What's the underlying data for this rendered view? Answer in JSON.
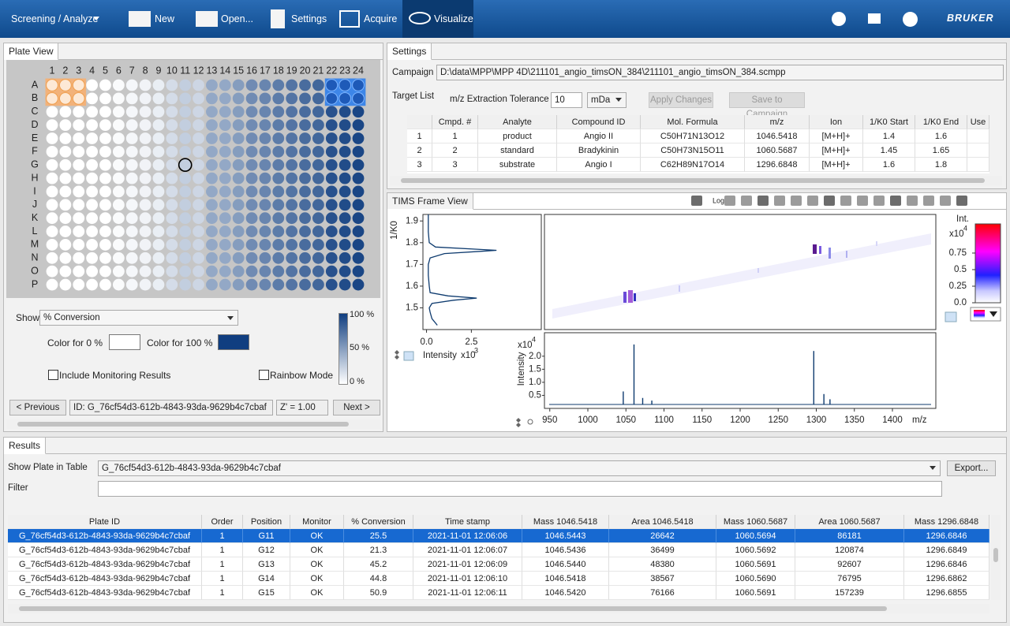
{
  "toolbar": {
    "menu": "Screening / Analyze",
    "buttons": [
      "New",
      "Open...",
      "Settings",
      "Acquire",
      "Visualize"
    ],
    "logo": "BRUKER"
  },
  "plate_view": {
    "title": "Plate View",
    "columns": [
      "1",
      "2",
      "3",
      "4",
      "5",
      "6",
      "7",
      "8",
      "9",
      "10",
      "11",
      "12",
      "13",
      "14",
      "15",
      "16",
      "17",
      "18",
      "19",
      "20",
      "21",
      "22",
      "23",
      "24"
    ],
    "rows": [
      "A",
      "B",
      "C",
      "D",
      "E",
      "F",
      "G",
      "H",
      "I",
      "J",
      "K",
      "L",
      "M",
      "N",
      "O",
      "P"
    ],
    "column_conversion": [
      0,
      0,
      0,
      0,
      0,
      2,
      4,
      6,
      9,
      18,
      25.5,
      21,
      45,
      45,
      51,
      60,
      63,
      68,
      72,
      76,
      79,
      90,
      93,
      96
    ],
    "show_label": "Show",
    "show_value": "% Conversion",
    "color0_label": "Color for 0 %",
    "color100_label": "Color for 100 %",
    "include_monitoring": "Include Monitoring Results",
    "rainbow_mode": "Rainbow Mode",
    "legend": [
      "100 %",
      "50 %",
      "0 %"
    ],
    "previous": "< Previous",
    "id": "ID: G_76cf54d3-612b-4843-93da-9629b4c7cbaf",
    "z_prime": "Z' = 1.00",
    "next": "Next >"
  },
  "settings": {
    "title": "Settings",
    "campaign_label": "Campaign",
    "campaign_path": "D:\\data\\MPP\\MPP 4D\\211101_angio_timsON_384\\211101_angio_timsON_384.scmpp",
    "target_list": "Target List",
    "tolerance_label": "m/z Extraction Tolerance",
    "tolerance_value": "10",
    "tolerance_unit": "mDa",
    "apply": "Apply Changes",
    "save": "Save to Campaign",
    "table": {
      "headers": [
        "Cmpd. #",
        "Analyte",
        "Compound ID",
        "Mol. Formula",
        "m/z",
        "Ion",
        "1/K0 Start",
        "1/K0 End",
        "Use"
      ],
      "rows": [
        [
          "1",
          "1",
          "product",
          "Angio II",
          "C50H71N13O12",
          "1046.5418",
          "[M+H]+",
          "1.4",
          "1.6"
        ],
        [
          "2",
          "2",
          "standard",
          "Bradykinin",
          "C50H73N15O11",
          "1060.5687",
          "[M+H]+",
          "1.45",
          "1.65"
        ],
        [
          "3",
          "3",
          "substrate",
          "Angio I",
          "C62H89N17O14",
          "1296.6848",
          "[M+H]+",
          "1.6",
          "1.8"
        ]
      ]
    }
  },
  "tims": {
    "title": "TIMS Frame View",
    "log": "Log",
    "mobilogram": {
      "ylabel": "1/K0",
      "xlabel": "Intensity",
      "xexp": {
        "base": "x10",
        "exp": "3"
      },
      "xlim": [
        -0.2,
        6.4
      ],
      "ylim": [
        1.4,
        1.93
      ],
      "xticks": [
        {
          "value": 0,
          "label": "0.0"
        },
        2.5
      ],
      "yticks": [
        1.5,
        1.6,
        1.7,
        1.8,
        1.9
      ],
      "k0": [
        1.42,
        1.45,
        1.48,
        1.5,
        1.52,
        1.535,
        1.545,
        1.555,
        1.57,
        1.6,
        1.65,
        1.7,
        1.73,
        1.75,
        1.76,
        1.765,
        1.77,
        1.78,
        1.8,
        1.85,
        1.9,
        1.93
      ],
      "intensity": [
        0.6,
        0.3,
        0.2,
        0.15,
        0.3,
        1.5,
        2.8,
        1.2,
        0.2,
        0.15,
        0.1,
        0.1,
        0.2,
        1.0,
        3.0,
        3.9,
        2.8,
        0.5,
        0.15,
        0.1,
        0.1,
        0.1
      ],
      "color": "#0d3a6e"
    },
    "spectrum": {
      "ylabel": "Intensity",
      "yexp": {
        "base": "x10",
        "exp": "4"
      },
      "xlabel": "m/z",
      "xlim": [
        943,
        1457
      ],
      "ylim": [
        0,
        2.9
      ],
      "xticks": [
        950,
        1000,
        1050,
        1100,
        1150,
        1200,
        1250,
        1300,
        1350,
        1400
      ],
      "yticks": [
        0.5,
        {
          "value": 1,
          "label": "1.0"
        },
        1.5,
        {
          "value": 2,
          "label": "2.0"
        }
      ],
      "peaks": {
        "mz": [
          1046.5,
          1060.6,
          1072,
          1084,
          1296.7,
          1310,
          1318
        ],
        "intensity": [
          0.65,
          2.45,
          0.4,
          0.3,
          2.2,
          0.55,
          0.35
        ]
      },
      "color": "#0d3a6e"
    },
    "colorbar": {
      "label": "Int.",
      "exp": {
        "base": "x10",
        "exp": "4"
      },
      "ylim": [
        0,
        1.19
      ],
      "yticks": [
        {
          "value": 0,
          "label": "0.0"
        },
        0.25,
        0.5,
        0.75
      ]
    }
  },
  "results": {
    "title": "Results",
    "show_plate": "Show Plate in Table",
    "plate": "G_76cf54d3-612b-4843-93da-9629b4c7cbaf",
    "export": "Export...",
    "filter": "Filter",
    "table": {
      "headers": [
        "Plate ID",
        "Order",
        "Position",
        "Monitor",
        "% Conversion",
        "Time stamp",
        "Mass 1046.5418",
        "Area 1046.5418",
        "Mass 1060.5687",
        "Area 1060.5687",
        "Mass 1296.6848"
      ],
      "rows": [
        [
          "G_76cf54d3-612b-4843-93da-9629b4c7cbaf",
          "1",
          "G11",
          "OK",
          "25.5",
          "2021-11-01 12:06:06",
          "1046.5443",
          "26642",
          "1060.5694",
          "86181",
          "1296.6846"
        ],
        [
          "G_76cf54d3-612b-4843-93da-9629b4c7cbaf",
          "1",
          "G12",
          "OK",
          "21.3",
          "2021-11-01 12:06:07",
          "1046.5436",
          "36499",
          "1060.5692",
          "120874",
          "1296.6849"
        ],
        [
          "G_76cf54d3-612b-4843-93da-9629b4c7cbaf",
          "1",
          "G13",
          "OK",
          "45.2",
          "2021-11-01 12:06:09",
          "1046.5440",
          "48380",
          "1060.5691",
          "92607",
          "1296.6846"
        ],
        [
          "G_76cf54d3-612b-4843-93da-9629b4c7cbaf",
          "1",
          "G14",
          "OK",
          "44.8",
          "2021-11-01 12:06:10",
          "1046.5418",
          "38567",
          "1060.5690",
          "76795",
          "1296.6862"
        ],
        [
          "G_76cf54d3-612b-4843-93da-9629b4c7cbaf",
          "1",
          "G15",
          "OK",
          "50.9",
          "2021-11-01 12:06:11",
          "1046.5420",
          "76166",
          "1060.5691",
          "157239",
          "1296.6855"
        ]
      ]
    }
  }
}
